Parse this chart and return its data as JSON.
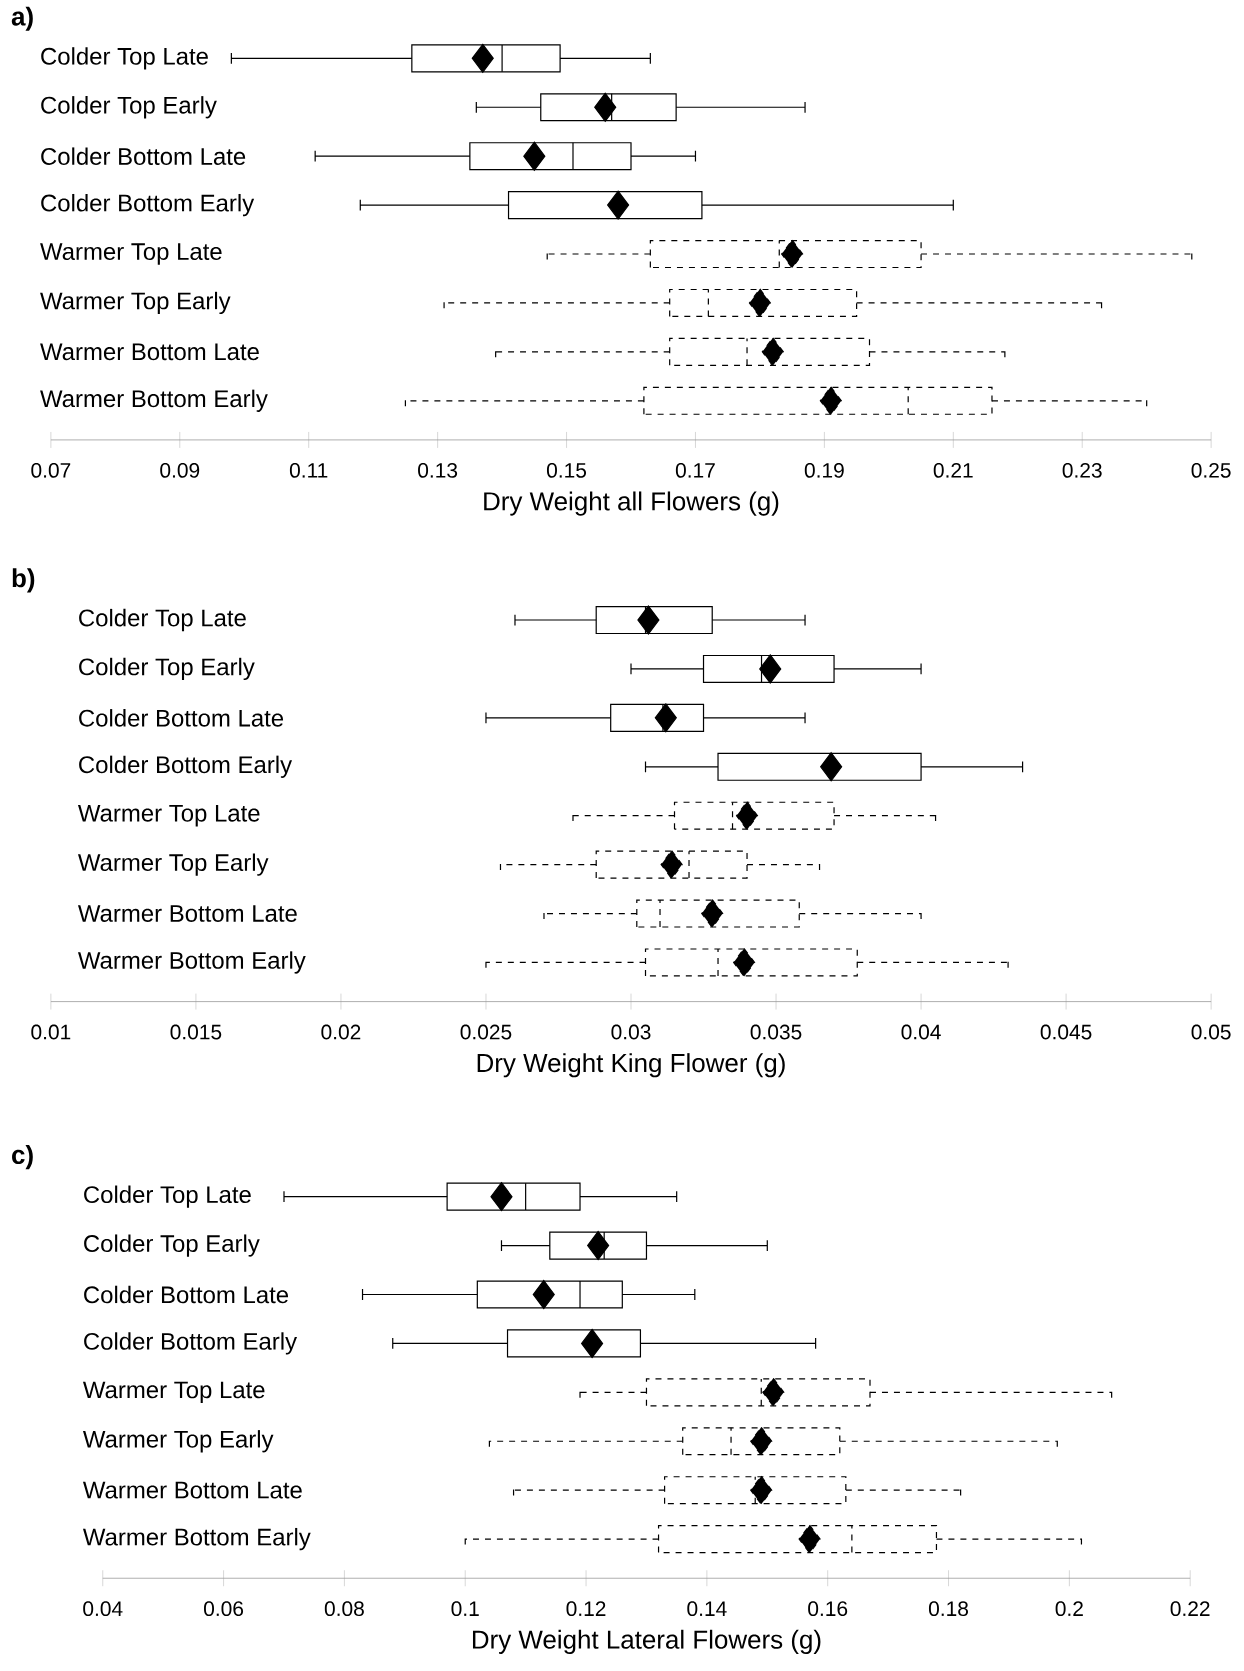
{
  "chart_data": [
    {
      "type": "box",
      "title": "a)",
      "xlabel": "Dry Weight all Flowers (g)",
      "orientation": "horizontal",
      "categories": [
        "Colder Top Late",
        "Colder Top Early",
        "Colder Bottom Late",
        "Colder Bottom Early",
        "Warmer Top Late",
        "Warmer Top Early",
        "Warmer Bottom Late",
        "Warmer Bottom Early"
      ],
      "xlim": [
        0.07,
        0.25
      ],
      "xticks": [
        0.07,
        0.09,
        0.11,
        0.13,
        0.15,
        0.17,
        0.19,
        0.21,
        0.23,
        0.25
      ],
      "series": [
        {
          "color": "#000000",
          "line_style": "solid",
          "boxes": [
            {
              "low": 0.098,
              "q1": 0.126,
              "median": 0.14,
              "q3": 0.149,
              "high": 0.163,
              "mean": 0.137
            },
            {
              "low": 0.136,
              "q1": 0.146,
              "median": 0.157,
              "q3": 0.167,
              "high": 0.187,
              "mean": 0.156
            },
            {
              "low": 0.111,
              "q1": 0.135,
              "median": 0.151,
              "q3": 0.16,
              "high": 0.17,
              "mean": 0.145
            },
            {
              "low": 0.118,
              "q1": 0.141,
              "median": 0.158,
              "q3": 0.171,
              "high": 0.21,
              "mean": 0.158
            },
            null,
            null,
            null,
            null
          ]
        },
        {
          "color": "#000000",
          "line_style": "dashed",
          "boxes": [
            null,
            null,
            null,
            null,
            {
              "low": 0.147,
              "q1": 0.163,
              "median": 0.183,
              "q3": 0.205,
              "high": 0.247,
              "mean": 0.185
            },
            {
              "low": 0.131,
              "q1": 0.166,
              "median": 0.172,
              "q3": 0.195,
              "high": 0.233,
              "mean": 0.18
            },
            {
              "low": 0.139,
              "q1": 0.166,
              "median": 0.178,
              "q3": 0.197,
              "high": 0.218,
              "mean": 0.182
            },
            {
              "low": 0.125,
              "q1": 0.162,
              "median": 0.203,
              "q3": 0.216,
              "high": 0.24,
              "mean": 0.191
            }
          ]
        }
      ]
    },
    {
      "type": "box",
      "title": "b)",
      "xlabel": "Dry Weight King Flower (g)",
      "orientation": "horizontal",
      "categories": [
        "Colder Top Late",
        "Colder Top Early",
        "Colder Bottom Late",
        "Colder Bottom Early",
        "Warmer Top Late",
        "Warmer Top Early",
        "Warmer Bottom Late",
        "Warmer Bottom Early"
      ],
      "xlim": [
        0.01,
        0.05
      ],
      "xticks": [
        0.01,
        0.015,
        0.02,
        0.025,
        0.03,
        0.035,
        0.04,
        0.045,
        0.05
      ],
      "series": [
        {
          "color": "#000000",
          "line_style": "solid",
          "boxes": [
            {
              "low": 0.026,
              "q1": 0.0288,
              "median": 0.0305,
              "q3": 0.0328,
              "high": 0.036,
              "mean": 0.0306
            },
            {
              "low": 0.03,
              "q1": 0.0325,
              "median": 0.0345,
              "q3": 0.037,
              "high": 0.04,
              "mean": 0.0348
            },
            {
              "low": 0.025,
              "q1": 0.0293,
              "median": 0.0311,
              "q3": 0.0325,
              "high": 0.036,
              "mean": 0.0312
            },
            {
              "low": 0.0305,
              "q1": 0.033,
              "median": 0.0369,
              "q3": 0.04,
              "high": 0.0435,
              "mean": 0.0369
            },
            null,
            null,
            null,
            null
          ]
        },
        {
          "color": "#000000",
          "line_style": "dashed",
          "boxes": [
            null,
            null,
            null,
            null,
            {
              "low": 0.028,
              "q1": 0.0315,
              "median": 0.0335,
              "q3": 0.037,
              "high": 0.0405,
              "mean": 0.034
            },
            {
              "low": 0.0255,
              "q1": 0.0288,
              "median": 0.032,
              "q3": 0.034,
              "high": 0.0365,
              "mean": 0.0314
            },
            {
              "low": 0.027,
              "q1": 0.0302,
              "median": 0.031,
              "q3": 0.0358,
              "high": 0.04,
              "mean": 0.0328
            },
            {
              "low": 0.025,
              "q1": 0.0305,
              "median": 0.033,
              "q3": 0.0378,
              "high": 0.043,
              "mean": 0.0339
            }
          ]
        }
      ]
    },
    {
      "type": "box",
      "title": "c)",
      "xlabel": "Dry Weight Lateral Flowers (g)",
      "orientation": "horizontal",
      "categories": [
        "Colder Top Late",
        "Colder Top Early",
        "Colder Bottom Late",
        "Colder Bottom Early",
        "Warmer Top Late",
        "Warmer Top Early",
        "Warmer Bottom Late",
        "Warmer Bottom Early"
      ],
      "xlim": [
        0.04,
        0.22
      ],
      "xticks": [
        0.04,
        0.06,
        0.08,
        0.1,
        0.12,
        0.14,
        0.16,
        0.18,
        0.2,
        0.22
      ],
      "series": [
        {
          "color": "#000000",
          "line_style": "solid",
          "boxes": [
            {
              "low": 0.07,
              "q1": 0.097,
              "median": 0.11,
              "q3": 0.119,
              "high": 0.135,
              "mean": 0.106
            },
            {
              "low": 0.106,
              "q1": 0.114,
              "median": 0.123,
              "q3": 0.13,
              "high": 0.15,
              "mean": 0.122
            },
            {
              "low": 0.083,
              "q1": 0.102,
              "median": 0.119,
              "q3": 0.126,
              "high": 0.138,
              "mean": 0.113
            },
            {
              "low": 0.088,
              "q1": 0.107,
              "median": 0.121,
              "q3": 0.129,
              "high": 0.158,
              "mean": 0.121
            },
            null,
            null,
            null,
            null
          ]
        },
        {
          "color": "#000000",
          "line_style": "dashed",
          "boxes": [
            null,
            null,
            null,
            null,
            {
              "low": 0.119,
              "q1": 0.13,
              "median": 0.149,
              "q3": 0.167,
              "high": 0.207,
              "mean": 0.151
            },
            {
              "low": 0.104,
              "q1": 0.136,
              "median": 0.144,
              "q3": 0.162,
              "high": 0.198,
              "mean": 0.149
            },
            {
              "low": 0.108,
              "q1": 0.133,
              "median": 0.148,
              "q3": 0.163,
              "high": 0.182,
              "mean": 0.149
            },
            {
              "low": 0.1,
              "q1": 0.132,
              "median": 0.164,
              "q3": 0.178,
              "high": 0.202,
              "mean": 0.157
            }
          ]
        }
      ]
    }
  ]
}
